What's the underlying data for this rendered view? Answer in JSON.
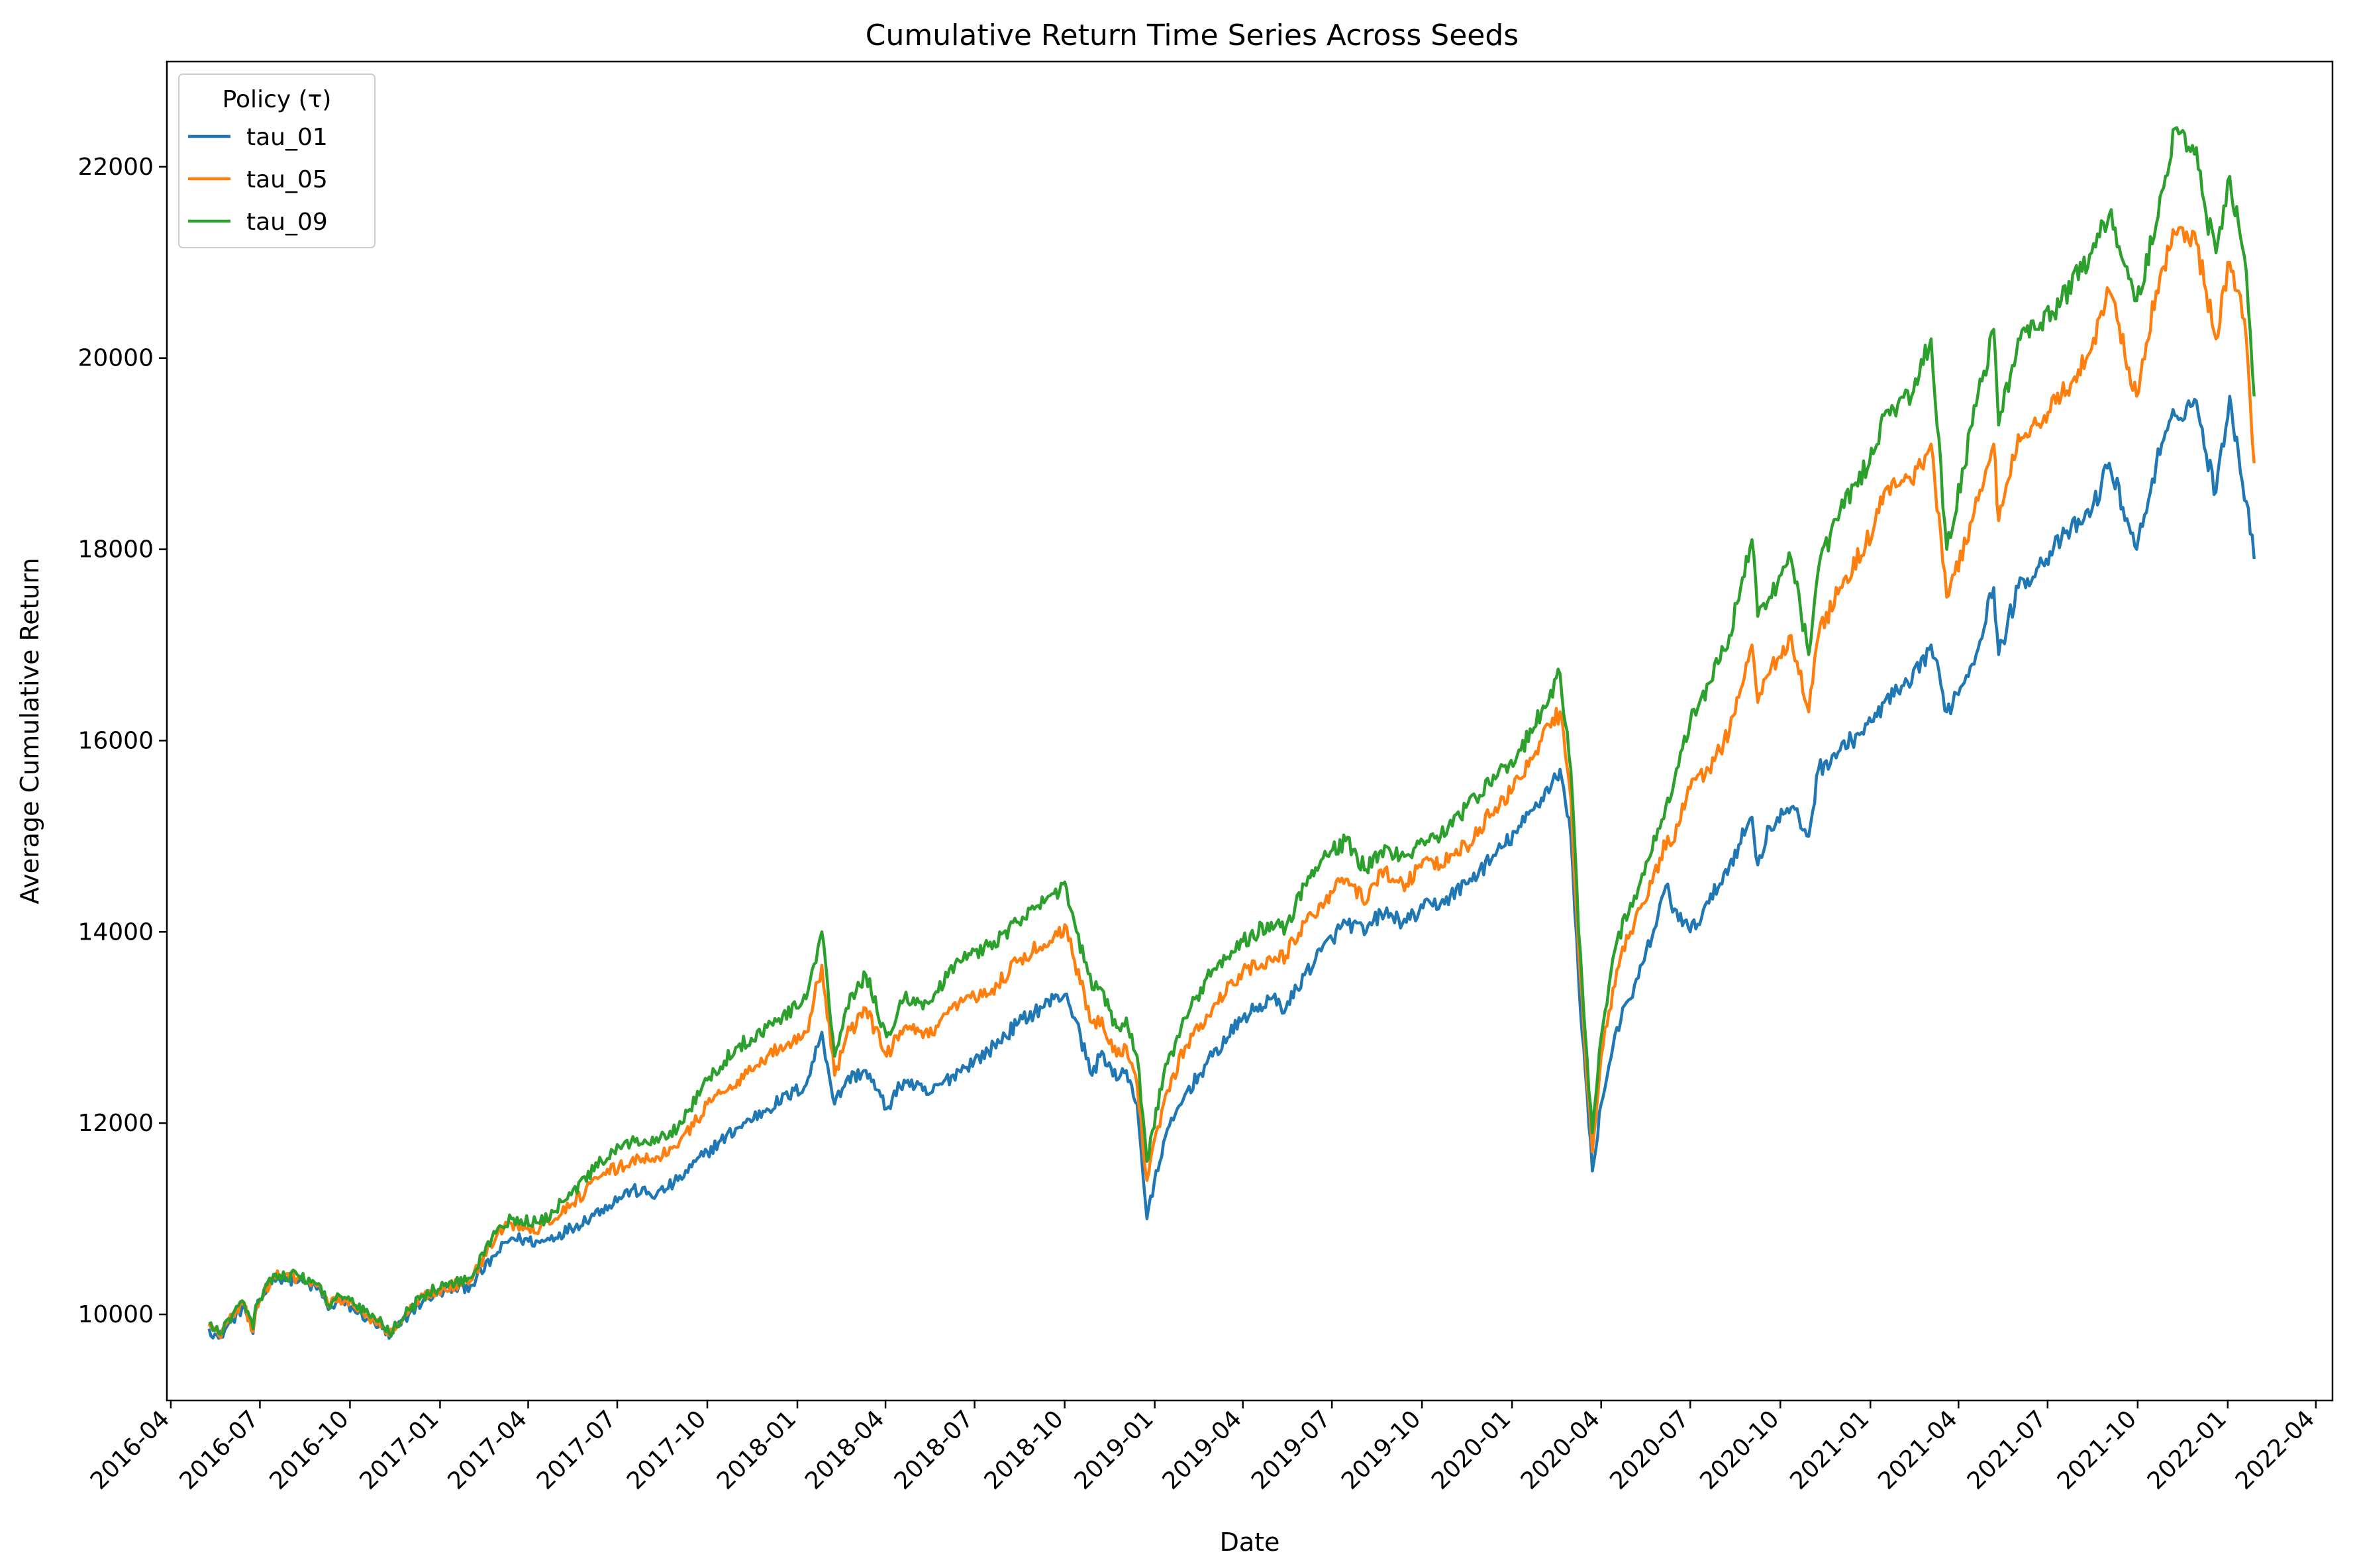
{
  "chart_data": {
    "type": "line",
    "title": "Cumulative Return Time Series Across Seeds",
    "xlabel": "Date",
    "ylabel": "Average Cumulative Return",
    "legend_title": "Policy (τ)",
    "legend_position": "top-left",
    "grid": false,
    "xlim": [
      "2016-03-28",
      "2022-04-18"
    ],
    "ylim": [
      9100,
      23100
    ],
    "x_ticks": [
      "2016-04",
      "2016-07",
      "2016-10",
      "2017-01",
      "2017-04",
      "2017-07",
      "2017-10",
      "2018-01",
      "2018-04",
      "2018-07",
      "2018-10",
      "2019-01",
      "2019-04",
      "2019-07",
      "2019-10",
      "2020-01",
      "2020-04",
      "2020-07",
      "2020-10",
      "2021-01",
      "2021-04",
      "2021-07",
      "2021-10",
      "2022-01",
      "2022-04"
    ],
    "y_ticks": [
      10000,
      12000,
      14000,
      16000,
      18000,
      20000,
      22000
    ],
    "x": [
      "2016-05-10",
      "2016-05-20",
      "2016-06-03",
      "2016-06-15",
      "2016-06-24",
      "2016-06-27",
      "2016-07-15",
      "2016-08-10",
      "2016-09-01",
      "2016-09-09",
      "2016-09-20",
      "2016-10-05",
      "2016-10-20",
      "2016-11-03",
      "2016-11-10",
      "2016-11-30",
      "2016-12-15",
      "2017-01-05",
      "2017-02-01",
      "2017-03-01",
      "2017-03-15",
      "2017-04-13",
      "2017-05-15",
      "2017-06-15",
      "2017-07-15",
      "2017-08-10",
      "2017-09-01",
      "2017-10-01",
      "2017-11-01",
      "2017-12-01",
      "2018-01-10",
      "2018-01-26",
      "2018-02-08",
      "2018-02-20",
      "2018-03-12",
      "2018-04-02",
      "2018-04-20",
      "2018-05-15",
      "2018-06-15",
      "2018-07-15",
      "2018-08-15",
      "2018-09-20",
      "2018-10-03",
      "2018-10-11",
      "2018-10-29",
      "2018-11-08",
      "2018-11-23",
      "2018-12-03",
      "2018-12-14",
      "2018-12-24",
      "2019-01-10",
      "2019-02-01",
      "2019-03-01",
      "2019-04-01",
      "2019-04-30",
      "2019-05-15",
      "2019-06-03",
      "2019-06-20",
      "2019-07-15",
      "2019-08-05",
      "2019-08-20",
      "2019-09-15",
      "2019-10-02",
      "2019-10-20",
      "2019-11-15",
      "2019-12-15",
      "2020-01-10",
      "2020-01-31",
      "2020-02-19",
      "2020-03-01",
      "2020-03-09",
      "2020-03-16",
      "2020-03-23",
      "2020-04-01",
      "2020-04-17",
      "2020-05-01",
      "2020-05-15",
      "2020-06-08",
      "2020-06-11",
      "2020-07-01",
      "2020-07-20",
      "2020-08-10",
      "2020-09-02",
      "2020-09-08",
      "2020-09-20",
      "2020-10-12",
      "2020-10-30",
      "2020-11-09",
      "2020-12-01",
      "2021-01-04",
      "2021-01-15",
      "2021-02-12",
      "2021-03-04",
      "2021-03-20",
      "2021-04-15",
      "2021-05-07",
      "2021-05-12",
      "2021-06-01",
      "2021-06-20",
      "2021-07-15",
      "2021-08-15",
      "2021-09-02",
      "2021-09-30",
      "2021-10-20",
      "2021-11-08",
      "2021-11-30",
      "2021-12-10",
      "2021-12-20",
      "2022-01-03",
      "2022-01-12",
      "2022-01-20",
      "2022-01-28"
    ],
    "series": [
      {
        "name": "tau_01",
        "color": "#1f77b4",
        "values": [
          9850,
          9750,
          9950,
          10080,
          9800,
          10050,
          10400,
          10350,
          10250,
          10050,
          10150,
          10050,
          9950,
          9850,
          9750,
          10000,
          10150,
          10250,
          10300,
          10650,
          10800,
          10750,
          10900,
          11100,
          11300,
          11250,
          11400,
          11700,
          11950,
          12150,
          12400,
          12950,
          12200,
          12450,
          12550,
          12150,
          12450,
          12300,
          12550,
          12750,
          13050,
          13300,
          13350,
          13100,
          12500,
          12750,
          12450,
          12550,
          12200,
          11000,
          11800,
          12300,
          12700,
          13100,
          13300,
          13200,
          13550,
          13800,
          14100,
          14000,
          14200,
          14100,
          14250,
          14300,
          14500,
          14800,
          15100,
          15400,
          15700,
          15000,
          13500,
          12500,
          11500,
          12200,
          13000,
          13300,
          13700,
          14500,
          14300,
          14000,
          14300,
          14700,
          15200,
          14700,
          15100,
          15300,
          15000,
          15700,
          15900,
          16200,
          16400,
          16600,
          17000,
          16300,
          16800,
          17600,
          16900,
          17600,
          17800,
          18100,
          18400,
          18900,
          18000,
          18900,
          19400,
          19550,
          19000,
          18600,
          19600,
          19000,
          18500,
          17900
        ]
      },
      {
        "name": "tau_05",
        "color": "#ff7f0e",
        "values": [
          9900,
          9780,
          9980,
          10100,
          9820,
          10080,
          10400,
          10380,
          10280,
          10080,
          10180,
          10080,
          9970,
          9870,
          9780,
          10020,
          10180,
          10280,
          10350,
          10850,
          10950,
          10900,
          11150,
          11450,
          11600,
          11650,
          11750,
          12200,
          12450,
          12700,
          12950,
          13650,
          12500,
          12900,
          13200,
          12700,
          13000,
          12900,
          13250,
          13350,
          13700,
          13950,
          14050,
          13700,
          13050,
          13100,
          12700,
          12800,
          12400,
          11400,
          12200,
          12800,
          13200,
          13600,
          13700,
          13750,
          14100,
          14300,
          14550,
          14300,
          14650,
          14500,
          14750,
          14700,
          14900,
          15300,
          15600,
          16000,
          16300,
          15400,
          13800,
          12700,
          11700,
          12700,
          13600,
          14000,
          14300,
          15000,
          14900,
          15500,
          15700,
          16100,
          17000,
          16400,
          16700,
          17100,
          16300,
          17100,
          17600,
          18200,
          18600,
          18700,
          19100,
          17500,
          18300,
          19100,
          18300,
          19200,
          19300,
          19600,
          20100,
          20700,
          19600,
          20700,
          21300,
          21200,
          20700,
          20200,
          21000,
          20700,
          20200,
          18900
        ]
      },
      {
        "name": "tau_09",
        "color": "#2ca02c",
        "values": [
          9900,
          9800,
          10000,
          10120,
          9850,
          10100,
          10420,
          10400,
          10300,
          10100,
          10200,
          10100,
          10000,
          9900,
          9800,
          10050,
          10200,
          10300,
          10380,
          10900,
          11000,
          10950,
          11250,
          11600,
          11800,
          11850,
          11950,
          12450,
          12800,
          13000,
          13300,
          14000,
          12700,
          13200,
          13550,
          12900,
          13300,
          13250,
          13700,
          13850,
          14100,
          14400,
          14450,
          14100,
          13400,
          13400,
          13000,
          13100,
          12700,
          11600,
          12500,
          13100,
          13600,
          13900,
          14100,
          14050,
          14500,
          14750,
          14950,
          14650,
          14850,
          14800,
          14950,
          15000,
          15300,
          15600,
          15900,
          16300,
          16700,
          15700,
          14000,
          12900,
          11900,
          12900,
          13900,
          14300,
          14600,
          15400,
          15400,
          16200,
          16600,
          17100,
          18100,
          17300,
          17500,
          17900,
          16900,
          17800,
          18400,
          19000,
          19400,
          19600,
          20200,
          18000,
          19300,
          20300,
          19300,
          20200,
          20300,
          20600,
          21100,
          21500,
          20600,
          21400,
          22400,
          22200,
          21500,
          21100,
          21900,
          21400,
          20900,
          19600
        ]
      }
    ]
  }
}
